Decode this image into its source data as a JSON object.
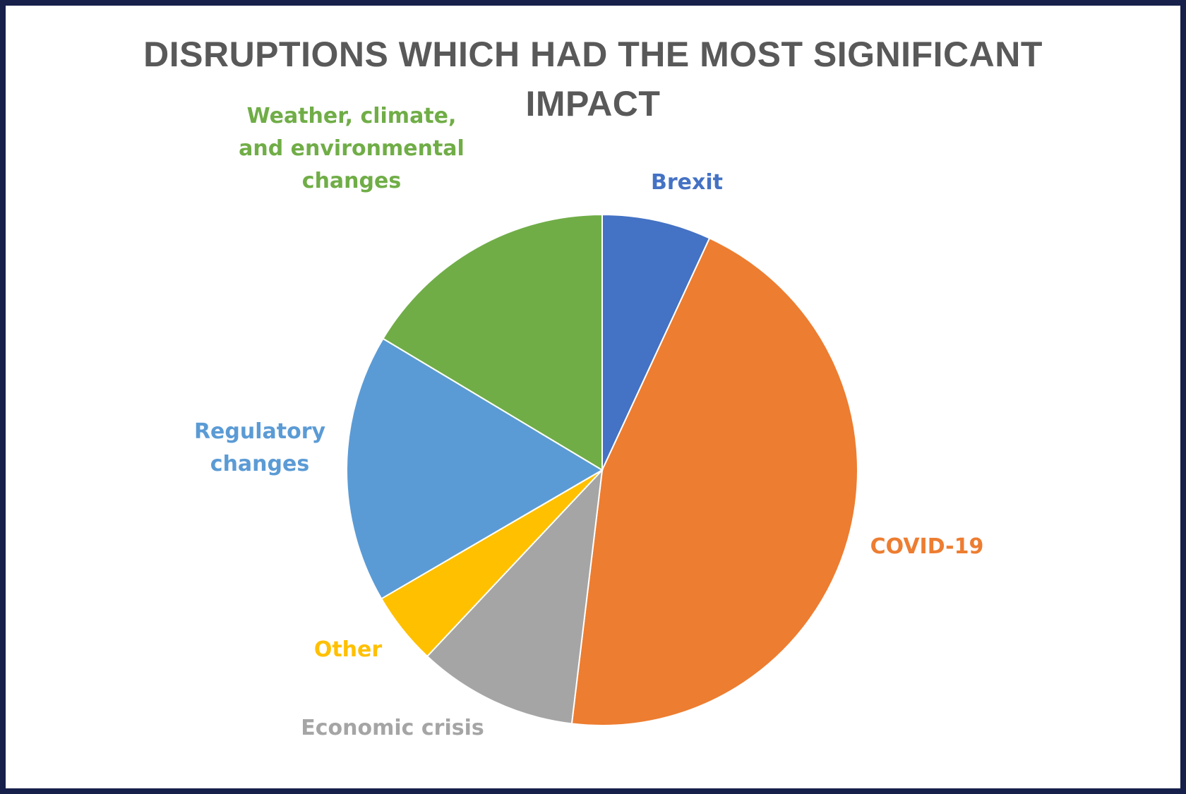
{
  "chart_data": {
    "type": "pie",
    "title_lines": [
      "DISRUPTIONS WHICH HAD THE MOST SIGNIFICANT",
      "IMPACT"
    ],
    "slices": [
      {
        "label_lines": [
          "Brexit"
        ],
        "value": 6.9,
        "color": "#4472c4"
      },
      {
        "label_lines": [
          "COVID-19"
        ],
        "value": 45.0,
        "color": "#ed7d31"
      },
      {
        "label_lines": [
          "Economic crisis"
        ],
        "value": 10.1,
        "color": "#a5a5a5"
      },
      {
        "label_lines": [
          "Other"
        ],
        "value": 4.6,
        "color": "#ffc000"
      },
      {
        "label_lines": [
          "Regulatory",
          "changes"
        ],
        "value": 17.0,
        "color": "#5b9bd5"
      },
      {
        "label_lines": [
          "Weather, climate,",
          "and environmental",
          "changes"
        ],
        "value": 16.4,
        "color": "#70ad47"
      }
    ],
    "legend": "none",
    "start_angle": "12 o'clock, clockwise"
  }
}
